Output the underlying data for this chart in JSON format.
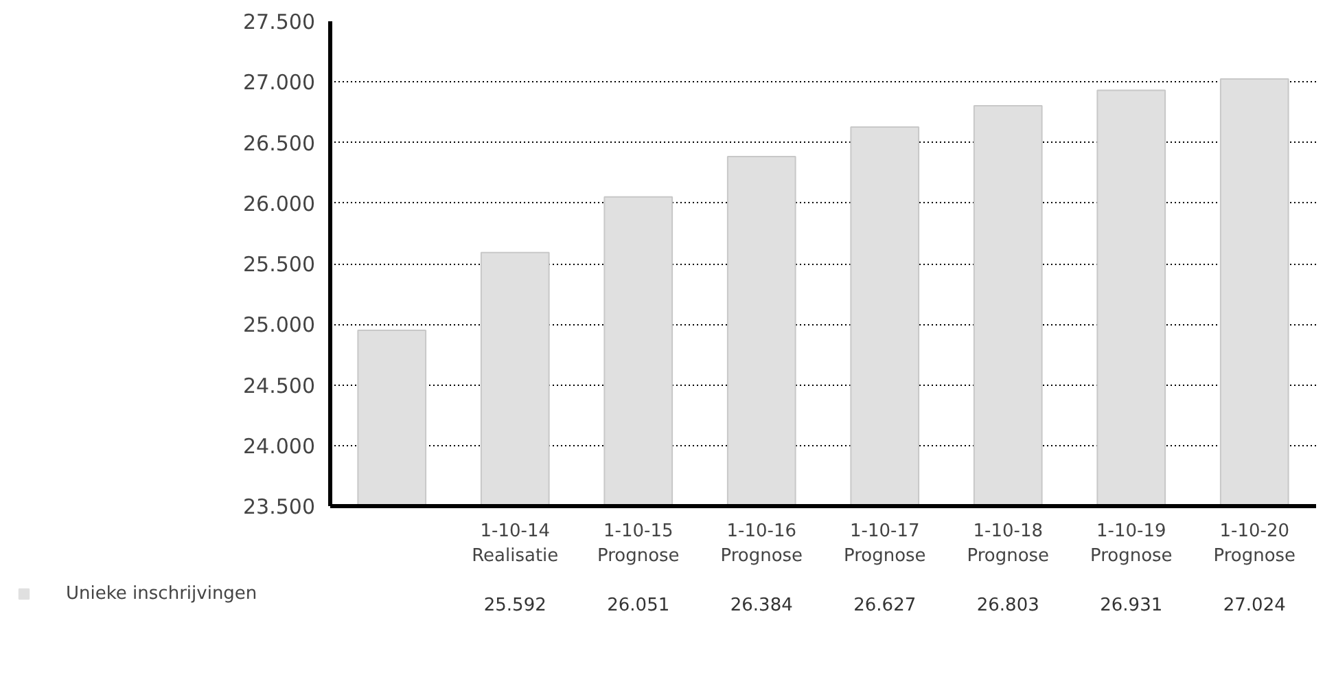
{
  "chart_data": {
    "type": "bar",
    "categories": [
      null,
      "1-10-14\nRealisatie",
      "1-10-15\nPrognose",
      "1-10-16\nPrognose",
      "1-10-17\nPrognose",
      "1-10-18\nPrognose",
      "1-10-19\nPrognose",
      "1-10-20\nPrognose"
    ],
    "series": [
      {
        "name": "Unieke inschrijvingen",
        "color": "#e0e0e0",
        "values": [
          24950,
          25592,
          26051,
          26384,
          26627,
          26803,
          26931,
          27024
        ],
        "value_labels": [
          null,
          "25.592",
          "26.051",
          "26.384",
          "26.627",
          "26.803",
          "26.931",
          "27.024"
        ]
      }
    ],
    "ylim": [
      23500,
      27500
    ],
    "yticks": [
      {
        "value": 23500,
        "label": "23.500"
      },
      {
        "value": 24000,
        "label": "24.000"
      },
      {
        "value": 24500,
        "label": "24.500"
      },
      {
        "value": 25000,
        "label": "25.000"
      },
      {
        "value": 25500,
        "label": "25.500"
      },
      {
        "value": 26000,
        "label": "26.000"
      },
      {
        "value": 26500,
        "label": "26.500"
      },
      {
        "value": 27000,
        "label": "27.000"
      },
      {
        "value": 27500,
        "label": "27.500"
      }
    ],
    "grid": "y",
    "legend": "bottom left"
  }
}
